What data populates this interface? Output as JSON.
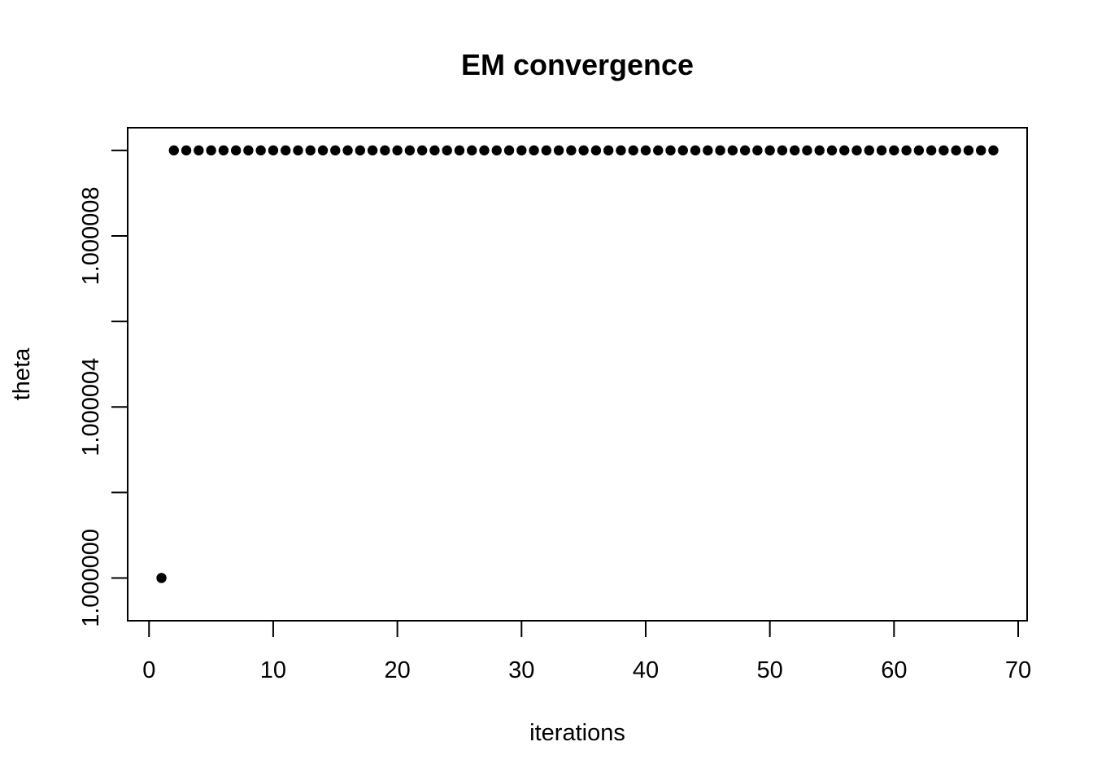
{
  "chart_data": {
    "type": "scatter",
    "title": "EM convergence",
    "xlabel": "iterations",
    "ylabel": "theta",
    "xlim": [
      -1.72,
      70.72
    ],
    "ylim": [
      0.999999,
      1.00001053
    ],
    "x_ticks": [
      0,
      10,
      20,
      30,
      40,
      50,
      60,
      70
    ],
    "x_tick_labels": [
      "0",
      "10",
      "20",
      "30",
      "40",
      "50",
      "60",
      "70"
    ],
    "y_ticks": [
      1.0,
      1.000002,
      1.000004,
      1.000006,
      1.000008,
      1.00001
    ],
    "y_tick_labels": [
      "1.000000",
      "",
      "1.000004",
      "",
      "1.000008",
      ""
    ],
    "grid": false,
    "marker": "filled-circle",
    "colors": {
      "points": "#000000",
      "axes": "#000000",
      "background": "#ffffff"
    },
    "series": [
      {
        "x": [
          1,
          2,
          3,
          4,
          5,
          6,
          7,
          8,
          9,
          10,
          11,
          12,
          13,
          14,
          15,
          16,
          17,
          18,
          19,
          20,
          21,
          22,
          23,
          24,
          25,
          26,
          27,
          28,
          29,
          30,
          31,
          32,
          33,
          34,
          35,
          36,
          37,
          38,
          39,
          40,
          41,
          42,
          43,
          44,
          45,
          46,
          47,
          48,
          49,
          50,
          51,
          52,
          53,
          54,
          55,
          56,
          57,
          58,
          59,
          60,
          61,
          62,
          63,
          64,
          65,
          66,
          67,
          68
        ],
        "y": [
          1.0,
          1.00001,
          1.00001,
          1.00001,
          1.00001,
          1.00001,
          1.00001,
          1.00001,
          1.00001,
          1.00001,
          1.00001,
          1.00001,
          1.00001,
          1.00001,
          1.00001,
          1.00001,
          1.00001,
          1.00001,
          1.00001,
          1.00001,
          1.00001,
          1.00001,
          1.00001,
          1.00001,
          1.00001,
          1.00001,
          1.00001,
          1.00001,
          1.00001,
          1.00001,
          1.00001,
          1.00001,
          1.00001,
          1.00001,
          1.00001,
          1.00001,
          1.00001,
          1.00001,
          1.00001,
          1.00001,
          1.00001,
          1.00001,
          1.00001,
          1.00001,
          1.00001,
          1.00001,
          1.00001,
          1.00001,
          1.00001,
          1.00001,
          1.00001,
          1.00001,
          1.00001,
          1.00001,
          1.00001,
          1.00001,
          1.00001,
          1.00001,
          1.00001,
          1.00001,
          1.00001,
          1.00001,
          1.00001,
          1.00001,
          1.00001,
          1.00001,
          1.00001,
          1.00001
        ]
      }
    ]
  }
}
